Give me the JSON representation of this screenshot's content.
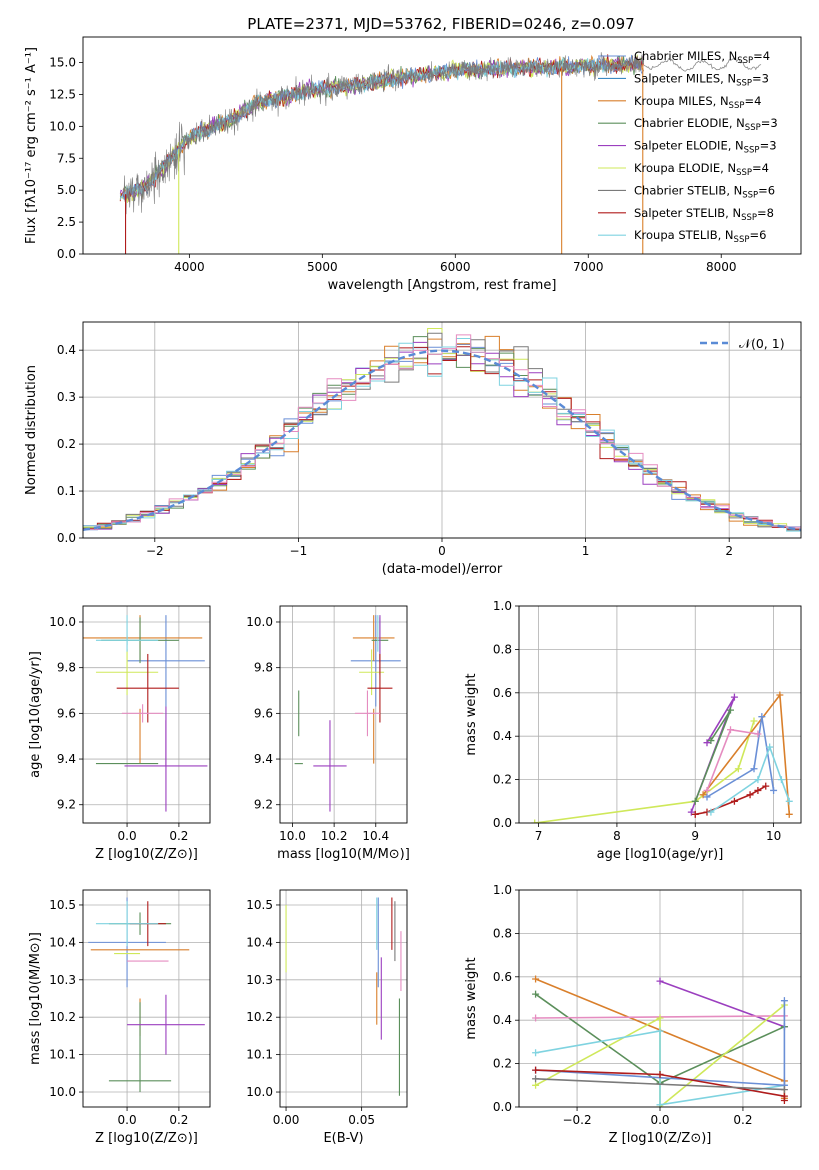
{
  "figure": {
    "title": "PLATE=2371, MJD=53762, FIBERID=0246, z=0.097"
  },
  "colors": {
    "Chabrier MILES": "#6a8fd6",
    "Salpeter MILES": "#3d8ac4",
    "Kroupa MILES": "#d97f2b",
    "Chabrier ELODIE": "#5b8f5b",
    "Salpeter ELODIE": "#9b3fbf",
    "Kroupa ELODIE": "#cfe85a",
    "Chabrier STELIB": "#7a7a7a",
    "Salpeter STELIB": "#b01c1c",
    "Kroupa STELIB": "#7fd3e0",
    "extra_pink": "#e58cc0"
  },
  "legend": [
    {
      "label": "Chabrier MILES, N",
      "sub": "SSP",
      "tail": "=4"
    },
    {
      "label": "Salpeter MILES, N",
      "sub": "SSP",
      "tail": "=3"
    },
    {
      "label": "Kroupa MILES, N",
      "sub": "SSP",
      "tail": "=4"
    },
    {
      "label": "Chabrier ELODIE, N",
      "sub": "SSP",
      "tail": "=3"
    },
    {
      "label": "Salpeter ELODIE, N",
      "sub": "SSP",
      "tail": "=3"
    },
    {
      "label": "Kroupa ELODIE, N",
      "sub": "SSP",
      "tail": "=4"
    },
    {
      "label": "Chabrier STELIB, N",
      "sub": "SSP",
      "tail": "=6"
    },
    {
      "label": "Salpeter STELIB, N",
      "sub": "SSP",
      "tail": "=8"
    },
    {
      "label": "Kroupa STELIB, N",
      "sub": "SSP",
      "tail": "=6"
    }
  ],
  "chart_data": [
    {
      "id": "spectrum",
      "type": "line",
      "title": "PLATE=2371, MJD=53762, FIBERID=0246, z=0.097",
      "xlabel": "wavelength [Angstrom, rest frame]",
      "ylabel": "Flux [fλ10⁻¹⁷ erg cm⁻² s⁻¹ A⁻¹]",
      "xlim": [
        3200,
        8600
      ],
      "ylim": [
        0,
        17
      ],
      "xticks": [
        4000,
        5000,
        6000,
        7000,
        8000
      ],
      "yticks": [
        0.0,
        2.5,
        5.0,
        7.5,
        10.0,
        12.5,
        15.0
      ],
      "continuum_x": [
        3500,
        3700,
        3900,
        4000,
        4100,
        4300,
        4500,
        4700,
        4900,
        5100,
        5300,
        5500,
        5800,
        6000,
        6300,
        6600,
        6900,
        7200,
        7500,
        7800,
        8100,
        8300
      ],
      "continuum_y": [
        4.6,
        5.5,
        8.0,
        9.1,
        9.6,
        10.4,
        11.8,
        12.3,
        12.8,
        13.0,
        13.3,
        13.7,
        14.1,
        14.4,
        14.5,
        14.6,
        14.7,
        14.8,
        14.9,
        14.7,
        14.9,
        14.8
      ],
      "drops": [
        {
          "x": 3520,
          "series": "Salpeter STELIB"
        },
        {
          "x": 3920,
          "series": "Kroupa ELODIE"
        },
        {
          "x": 6800,
          "series": "Kroupa MILES"
        },
        {
          "x": 7410,
          "series": "Kroupa MILES"
        }
      ],
      "grid": false,
      "legend_position": "top-right"
    },
    {
      "id": "residuals",
      "type": "step",
      "xlabel": "(data-model)/error",
      "ylabel": "Normed distribution",
      "xlim": [
        -2.5,
        2.5
      ],
      "ylim": [
        0,
        0.46
      ],
      "xticks": [
        -2,
        -1,
        0,
        1,
        2
      ],
      "yticks": [
        0.0,
        0.1,
        0.2,
        0.3,
        0.4
      ],
      "bin_width": 0.1,
      "gaussian_label": "𝒩(0, 1)",
      "grid": true,
      "legend_position": "top-right"
    },
    {
      "id": "age_vs_Z",
      "type": "scatter",
      "xlabel": "Z [log10(Z/Z⊙)]",
      "ylabel": "age [log10(age/yr)]",
      "xlim": [
        -0.17,
        0.32
      ],
      "ylim": [
        9.12,
        10.07
      ],
      "xticks": [
        0.0,
        0.2
      ],
      "yticks": [
        9.2,
        9.4,
        9.6,
        9.8,
        10.0
      ],
      "points": [
        {
          "s": "Chabrier MILES",
          "x": 0.15,
          "y": 9.83,
          "xe": 0.15,
          "ye": 0.2
        },
        {
          "s": "Kroupa MILES",
          "x": 0.05,
          "y": 9.93,
          "xe": 0.24,
          "ye": 0.1
        },
        {
          "s": "Kroupa MILES",
          "x": 0.05,
          "y": 9.5,
          "xe": 0.0,
          "ye": 0.12
        },
        {
          "s": "Chabrier ELODIE",
          "x": 0.0,
          "y": 9.38,
          "xe": 0.12,
          "ye": 0.0
        },
        {
          "s": "Chabrier ELODIE",
          "x": 0.05,
          "y": 9.92,
          "xe": 0.15,
          "ye": 0.1
        },
        {
          "s": "Salpeter ELODIE",
          "x": 0.15,
          "y": 9.37,
          "xe": 0.16,
          "ye": 0.2
        },
        {
          "s": "Salpeter ELODIE",
          "x": 0.15,
          "y": 9.5,
          "xe": 0.0,
          "ye": 0.13
        },
        {
          "s": "Kroupa ELODIE",
          "x": 0.0,
          "y": 9.78,
          "xe": 0.12,
          "ye": 0.1
        },
        {
          "s": "Salpeter STELIB",
          "x": 0.08,
          "y": 9.71,
          "xe": 0.12,
          "ye": 0.15
        },
        {
          "s": "Kroupa STELIB",
          "x": 0.0,
          "y": 9.95,
          "xe": 0.0,
          "ye": 0.08
        },
        {
          "s": "Kroupa STELIB",
          "x": 0.0,
          "y": 9.92,
          "xe": 0.12,
          "ye": 0.02
        },
        {
          "s": "extra_pink",
          "x": 0.06,
          "y": 9.6,
          "xe": 0.08,
          "ye": 0.04
        }
      ],
      "grid": true
    },
    {
      "id": "age_vs_mass",
      "type": "scatter",
      "xlabel": "mass [log10(M/M⊙)]",
      "ylabel": "",
      "xlim": [
        9.94,
        10.55
      ],
      "ylim": [
        9.12,
        10.07
      ],
      "xticks": [
        10.0,
        10.2,
        10.4
      ],
      "yticks": [
        9.2,
        9.4,
        9.6,
        9.8,
        10.0
      ],
      "points": [
        {
          "s": "Chabrier MILES",
          "x": 10.4,
          "y": 9.83,
          "xe": 0.12,
          "ye": 0.2
        },
        {
          "s": "Kroupa MILES",
          "x": 10.39,
          "y": 9.93,
          "xe": 0.1,
          "ye": 0.1
        },
        {
          "s": "Kroupa MILES",
          "x": 10.39,
          "y": 9.5,
          "xe": 0.0,
          "ye": 0.12
        },
        {
          "s": "Chabrier ELODIE",
          "x": 10.03,
          "y": 9.38,
          "xe": 0.02,
          "ye": 0.0
        },
        {
          "s": "Chabrier ELODIE",
          "x": 10.03,
          "y": 9.6,
          "xe": 0.0,
          "ye": 0.1
        },
        {
          "s": "Chabrier ELODIE",
          "x": 10.42,
          "y": 9.92,
          "xe": 0.04,
          "ye": 0.1
        },
        {
          "s": "Salpeter ELODIE",
          "x": 10.18,
          "y": 9.37,
          "xe": 0.08,
          "ye": 0.2
        },
        {
          "s": "Salpeter ELODIE",
          "x": 10.42,
          "y": 9.9,
          "xe": 0.0,
          "ye": 0.13
        },
        {
          "s": "Kroupa ELODIE",
          "x": 10.38,
          "y": 9.78,
          "xe": 0.06,
          "ye": 0.1
        },
        {
          "s": "Salpeter STELIB",
          "x": 10.42,
          "y": 9.71,
          "xe": 0.06,
          "ye": 0.15
        },
        {
          "s": "Kroupa STELIB",
          "x": 10.41,
          "y": 9.95,
          "xe": 0.0,
          "ye": 0.08
        },
        {
          "s": "extra_pink",
          "x": 10.36,
          "y": 9.6,
          "xe": 0.06,
          "ye": 0.1
        }
      ],
      "grid": true
    },
    {
      "id": "massweight_vs_age",
      "type": "line",
      "xlabel": "age [log10(age/yr)]",
      "ylabel": "mass weight",
      "xlim": [
        6.75,
        10.35
      ],
      "ylim": [
        0,
        1.0
      ],
      "xticks": [
        7,
        8,
        9,
        10
      ],
      "yticks": [
        0.0,
        0.2,
        0.4,
        0.6,
        0.8,
        1.0
      ],
      "series": [
        {
          "s": "Kroupa ELODIE",
          "x": [
            6.95,
            9.0,
            9.55,
            9.75
          ],
          "y": [
            0.0,
            0.1,
            0.25,
            0.47
          ]
        },
        {
          "s": "Salpeter ELODIE",
          "x": [
            9.15,
            9.5,
            8.95
          ],
          "y": [
            0.37,
            0.58,
            0.05
          ]
        },
        {
          "s": "Chabrier ELODIE",
          "x": [
            9.2,
            9.45,
            9.0
          ],
          "y": [
            0.38,
            0.52,
            0.1
          ]
        },
        {
          "s": "Kroupa MILES",
          "x": [
            9.1,
            10.08,
            10.2
          ],
          "y": [
            0.13,
            0.59,
            0.04
          ]
        },
        {
          "s": "Chabrier MILES",
          "x": [
            9.15,
            9.75,
            9.85,
            10.0
          ],
          "y": [
            0.12,
            0.25,
            0.49,
            0.15
          ]
        },
        {
          "s": "extra_pink",
          "x": [
            9.15,
            9.45,
            9.8
          ],
          "y": [
            0.15,
            0.43,
            0.41
          ]
        },
        {
          "s": "Salpeter STELIB",
          "x": [
            9.0,
            9.15,
            9.5,
            9.7,
            9.8,
            9.9
          ],
          "y": [
            0.04,
            0.05,
            0.1,
            0.13,
            0.15,
            0.17
          ]
        },
        {
          "s": "Kroupa STELIB",
          "x": [
            9.2,
            9.8,
            9.95,
            10.1,
            10.2
          ],
          "y": [
            0.05,
            0.2,
            0.35,
            0.2,
            0.1
          ]
        }
      ],
      "grid": true
    },
    {
      "id": "mass_vs_Z",
      "type": "scatter",
      "xlabel": "Z [log10(Z/Z⊙)]",
      "ylabel": "mass [log10(M/M⊙)]",
      "xlim": [
        -0.17,
        0.32
      ],
      "ylim": [
        9.96,
        10.54
      ],
      "xticks": [
        0.0,
        0.2
      ],
      "yticks": [
        10.0,
        10.1,
        10.2,
        10.3,
        10.4,
        10.5
      ],
      "points": [
        {
          "s": "Chabrier MILES",
          "x": 0.0,
          "y": 10.4,
          "xe": 0.15,
          "ye": 0.12
        },
        {
          "s": "Kroupa MILES",
          "x": 0.05,
          "y": 10.38,
          "xe": 0.19,
          "ye": 0.0
        },
        {
          "s": "Kroupa MILES",
          "x": 0.05,
          "y": 10.2,
          "xe": 0.0,
          "ye": 0.05
        },
        {
          "s": "Chabrier ELODIE",
          "x": 0.05,
          "y": 10.03,
          "xe": 0.12,
          "ye": 0.0
        },
        {
          "s": "Chabrier ELODIE",
          "x": 0.05,
          "y": 10.12,
          "xe": 0.0,
          "ye": 0.12
        },
        {
          "s": "Chabrier ELODIE",
          "x": 0.05,
          "y": 10.45,
          "xe": 0.12,
          "ye": 0.03
        },
        {
          "s": "Salpeter ELODIE",
          "x": 0.15,
          "y": 10.18,
          "xe": 0.15,
          "ye": 0.08
        },
        {
          "s": "Kroupa ELODIE",
          "x": 0.0,
          "y": 10.37,
          "xe": 0.05,
          "ye": 0.0
        },
        {
          "s": "Salpeter STELIB",
          "x": 0.08,
          "y": 10.45,
          "xe": 0.07,
          "ye": 0.06
        },
        {
          "s": "Kroupa STELIB",
          "x": 0.0,
          "y": 10.45,
          "xe": 0.12,
          "ye": 0.06
        },
        {
          "s": "extra_pink",
          "x": 0.08,
          "y": 10.35,
          "xe": 0.08,
          "ye": 0.0
        }
      ],
      "grid": true
    },
    {
      "id": "mass_vs_ebv",
      "type": "errorbar",
      "xlabel": "E(B-V)",
      "ylabel": "",
      "xlim": [
        -0.004,
        0.08
      ],
      "ylim": [
        9.96,
        10.54
      ],
      "xticks": [
        0.0,
        0.05
      ],
      "xticklabels": [
        "0.00",
        "0.05"
      ],
      "yticks": [
        10.0,
        10.1,
        10.2,
        10.3,
        10.4,
        10.5
      ],
      "points": [
        {
          "s": "Kroupa ELODIE",
          "x": 0.0,
          "y": 10.41,
          "ye": 0.09
        },
        {
          "s": "Kroupa STELIB",
          "x": 0.06,
          "y": 10.45,
          "ye": 0.07
        },
        {
          "s": "Kroupa MILES",
          "x": 0.06,
          "y": 10.25,
          "ye": 0.07
        },
        {
          "s": "Salpeter ELODIE",
          "x": 0.063,
          "y": 10.25,
          "ye": 0.11
        },
        {
          "s": "Chabrier MILES",
          "x": 0.061,
          "y": 10.4,
          "ye": 0.12
        },
        {
          "s": "Salpeter STELIB",
          "x": 0.07,
          "y": 10.45,
          "ye": 0.07
        },
        {
          "s": "Chabrier STELIB",
          "x": 0.072,
          "y": 10.43,
          "ye": 0.08
        },
        {
          "s": "Chabrier ELODIE",
          "x": 0.075,
          "y": 10.12,
          "ye": 0.13
        },
        {
          "s": "extra_pink",
          "x": 0.076,
          "y": 10.35,
          "ye": 0.08
        }
      ],
      "grid": true
    },
    {
      "id": "massweight_vs_Z",
      "type": "line",
      "xlabel": "Z [log10(Z/Z⊙)]",
      "ylabel": "mass weight",
      "xlim": [
        -0.34,
        0.34
      ],
      "ylim": [
        0,
        1.0
      ],
      "xticks": [
        -0.2,
        0.0,
        0.2
      ],
      "yticks": [
        0.0,
        0.2,
        0.4,
        0.6,
        0.8,
        1.0
      ],
      "series": [
        {
          "s": "Kroupa MILES",
          "x": [
            -0.3,
            0.3,
            0.3
          ],
          "y": [
            0.59,
            0.12,
            0.04
          ]
        },
        {
          "s": "Salpeter ELODIE",
          "x": [
            0.0,
            0.3
          ],
          "y": [
            0.58,
            0.37
          ]
        },
        {
          "s": "Chabrier ELODIE",
          "x": [
            -0.3,
            0.0,
            0.3
          ],
          "y": [
            0.52,
            0.11,
            0.37
          ]
        },
        {
          "s": "extra_pink",
          "x": [
            -0.3,
            0.3
          ],
          "y": [
            0.41,
            0.42
          ]
        },
        {
          "s": "Kroupa ELODIE",
          "x": [
            -0.3,
            0.0,
            0.0,
            0.3
          ],
          "y": [
            0.1,
            0.41,
            0.0,
            0.47
          ]
        },
        {
          "s": "Kroupa STELIB",
          "x": [
            -0.3,
            0.0,
            0.0,
            0.3
          ],
          "y": [
            0.25,
            0.35,
            0.01,
            0.1
          ]
        },
        {
          "s": "Chabrier MILES",
          "x": [
            -0.3,
            0.3,
            0.3
          ],
          "y": [
            0.17,
            0.1,
            0.49
          ]
        },
        {
          "s": "Salpeter STELIB",
          "x": [
            -0.3,
            0.0,
            0.3,
            0.3
          ],
          "y": [
            0.17,
            0.15,
            0.05,
            0.03
          ]
        },
        {
          "s": "Chabrier STELIB",
          "x": [
            -0.3,
            0.3
          ],
          "y": [
            0.13,
            0.08
          ]
        }
      ],
      "grid": true
    }
  ]
}
